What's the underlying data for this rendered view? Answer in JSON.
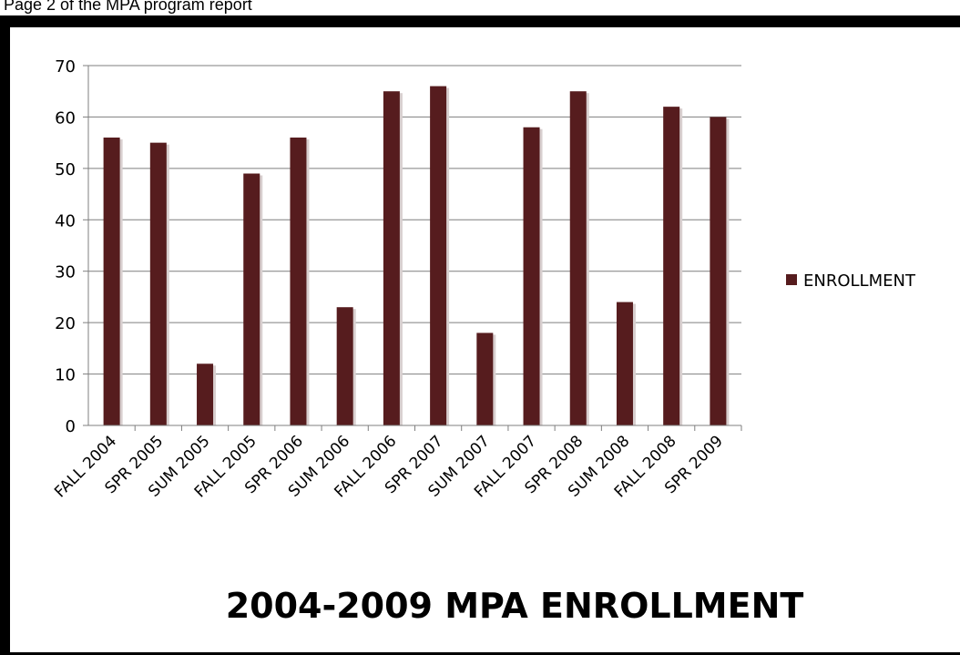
{
  "top_caption": "Page 2 of the MPA program report",
  "colors": {
    "bar": "#561C1E",
    "axis": "#7f7f7f",
    "grid": "#7f7f7f",
    "frame": "#000000"
  },
  "chart_data": {
    "type": "bar",
    "title": "2004-2009 MPA ENROLLMENT",
    "xlabel": "",
    "ylabel": "",
    "ylim": [
      0,
      70
    ],
    "yticks": [
      0,
      10,
      20,
      30,
      40,
      50,
      60,
      70
    ],
    "grid": true,
    "legend_position": "right",
    "categories": [
      "FALL 2004",
      "SPR 2005",
      "SUM 2005",
      "FALL 2005",
      "SPR 2006",
      "SUM 2006",
      "FALL 2006",
      "SPR 2007",
      "SUM 2007",
      "FALL 2007",
      "SPR 2008",
      "SUM 2008",
      "FALL 2008",
      "SPR 2009"
    ],
    "series": [
      {
        "name": "ENROLLMENT",
        "values": [
          56,
          55,
          12,
          49,
          56,
          23,
          65,
          66,
          18,
          58,
          65,
          24,
          62,
          60
        ]
      }
    ]
  }
}
